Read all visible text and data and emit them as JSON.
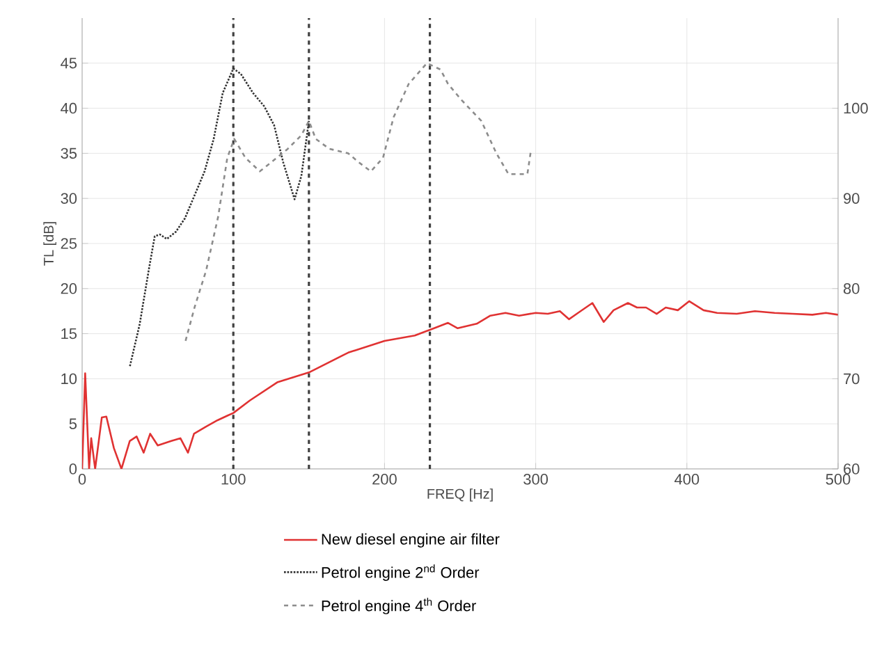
{
  "chart_data": {
    "type": "line",
    "xlabel": "FREQ [Hz]",
    "ylabel": "TL [dB]",
    "xlim": [
      0,
      500
    ],
    "xticks": [
      0,
      100,
      200,
      300,
      400,
      500
    ],
    "ylim": [
      0,
      50
    ],
    "yticks": [
      0,
      5,
      10,
      15,
      20,
      25,
      30,
      35,
      40,
      45
    ],
    "y2lim": [
      60,
      110
    ],
    "y2ticks": [
      60,
      70,
      80,
      90,
      100
    ],
    "grid": true,
    "legend": "bottom",
    "ref_lines": [
      {
        "axis": "x",
        "value": 100,
        "color": "#404040",
        "line_style": "dashed"
      },
      {
        "axis": "x",
        "value": 150,
        "color": "#404040",
        "line_style": "dashed"
      },
      {
        "axis": "x",
        "value": 230,
        "color": "#404040",
        "line_style": "dashed"
      }
    ],
    "series": [
      {
        "name": "New diesel engine air filter",
        "color": "#e03232",
        "line_style": "solid",
        "x": [
          0,
          2,
          4.6,
          6,
          8.6,
          13,
          16,
          21,
          26,
          31.5,
          36,
          40.7,
          45,
          50,
          59,
          65,
          70,
          74,
          82,
          89.6,
          96,
          100,
          111,
          129,
          150,
          176,
          200,
          220,
          232.8,
          242,
          248.4,
          261,
          270,
          280,
          289,
          300,
          308,
          316,
          322,
          328,
          337.5,
          345,
          351.5,
          361,
          367,
          373,
          380,
          386,
          394,
          401.5,
          411,
          420,
          433,
          445,
          458,
          470,
          483,
          492,
          500
        ],
        "values": [
          0,
          10.6,
          0,
          3.4,
          0,
          5.7,
          5.8,
          2.3,
          0,
          3.1,
          3.6,
          1.8,
          3.9,
          2.6,
          3.1,
          3.4,
          1.8,
          3.9,
          4.7,
          5.4,
          5.9,
          6.2,
          7.6,
          9.6,
          10.7,
          12.9,
          14.2,
          14.8,
          15.6,
          16.2,
          15.6,
          16.1,
          17,
          17.3,
          17,
          17.3,
          17.2,
          17.5,
          16.6,
          17.3,
          18.4,
          16.3,
          17.6,
          18.4,
          17.9,
          17.9,
          17.2,
          17.9,
          17.6,
          18.6,
          17.6,
          17.3,
          17.2,
          17.5,
          17.3,
          17.2,
          17.1,
          17.3,
          17.1
        ]
      },
      {
        "name": "Petrol engine 2$^{nd}$ Order",
        "color": "#303030",
        "line_style": "dotted",
        "x": [
          31.6,
          38,
          44,
          48,
          51.5,
          56,
          62,
          68,
          74.5,
          81,
          87,
          93,
          100,
          105,
          113,
          120.5,
          127,
          133,
          140.5,
          145,
          150
        ],
        "values": [
          11.4,
          16,
          22,
          25.8,
          26,
          25.5,
          26.3,
          27.8,
          30.4,
          33,
          36.6,
          41.7,
          44.4,
          43.8,
          41.7,
          40.2,
          38.1,
          34,
          29.9,
          32.5,
          38.6
        ]
      },
      {
        "name": "Petrol engine 4$^{th}$  Order",
        "color": "#8c8c8c",
        "line_style": "dashed",
        "x": [
          68.4,
          74.5,
          82,
          90,
          96,
          100.6,
          108,
          117.5,
          125,
          136,
          145,
          150,
          154.5,
          163.5,
          176,
          183,
          191,
          199,
          206,
          216,
          228,
          237,
          242,
          251,
          264,
          274,
          282,
          294.5,
          297
        ],
        "values": [
          14.2,
          18,
          22,
          28,
          34.5,
          36.6,
          34.5,
          33,
          34,
          35.5,
          37,
          38.6,
          36.6,
          35.5,
          35,
          34,
          33,
          34.5,
          39,
          42.7,
          45,
          44.3,
          42.7,
          40.9,
          38.6,
          35,
          32.7,
          32.7,
          35.5
        ]
      }
    ]
  }
}
